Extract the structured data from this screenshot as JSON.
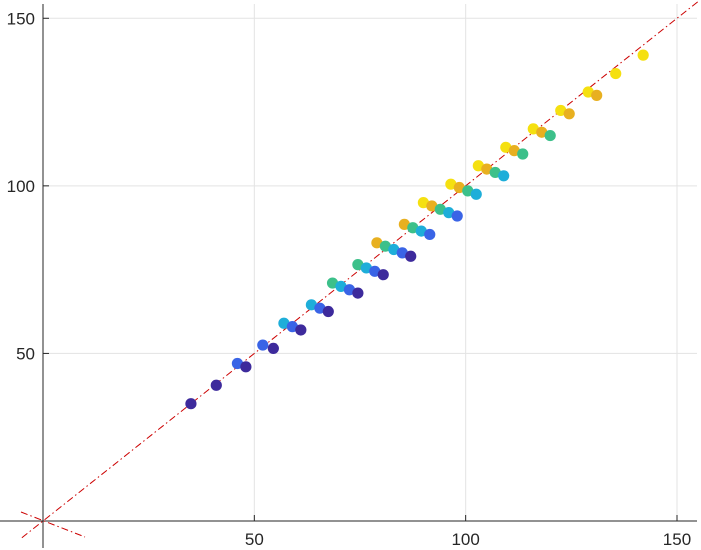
{
  "chart_data": {
    "type": "scatter",
    "title": "",
    "xlabel": "",
    "ylabel": "",
    "xlim": [
      0,
      155
    ],
    "ylim": [
      0,
      155
    ],
    "x_ticks": [
      {
        "value": 50,
        "label": "50"
      },
      {
        "value": 100,
        "label": "100"
      },
      {
        "value": 150,
        "label": "150"
      }
    ],
    "y_ticks": [
      {
        "value": 50,
        "label": "50"
      },
      {
        "value": 100,
        "label": "100"
      },
      {
        "value": 150,
        "label": "150"
      }
    ],
    "grid": true,
    "reference_line": {
      "style": "dashed",
      "color": "#cc0000",
      "slope": 1,
      "intercept": 0
    },
    "points": [
      {
        "x": 35.0,
        "y": 35.0,
        "color": "#3d2a9c"
      },
      {
        "x": 41.0,
        "y": 40.5,
        "color": "#3d2a9c"
      },
      {
        "x": 46.0,
        "y": 47.0,
        "color": "#3a64e6"
      },
      {
        "x": 48.0,
        "y": 46.0,
        "color": "#3d2a9c"
      },
      {
        "x": 52.0,
        "y": 52.5,
        "color": "#3a64e6"
      },
      {
        "x": 54.5,
        "y": 51.5,
        "color": "#3d2a9c"
      },
      {
        "x": 57.0,
        "y": 59.0,
        "color": "#1eaed9"
      },
      {
        "x": 59.0,
        "y": 58.0,
        "color": "#3a64e6"
      },
      {
        "x": 61.0,
        "y": 57.0,
        "color": "#3d2a9c"
      },
      {
        "x": 63.5,
        "y": 64.5,
        "color": "#1eaed9"
      },
      {
        "x": 65.5,
        "y": 63.5,
        "color": "#3a64e6"
      },
      {
        "x": 67.5,
        "y": 62.5,
        "color": "#3d2a9c"
      },
      {
        "x": 68.5,
        "y": 71.0,
        "color": "#3cc08a"
      },
      {
        "x": 70.5,
        "y": 70.0,
        "color": "#1eaed9"
      },
      {
        "x": 72.5,
        "y": 69.0,
        "color": "#3a64e6"
      },
      {
        "x": 74.5,
        "y": 68.0,
        "color": "#3d2a9c"
      },
      {
        "x": 74.5,
        "y": 76.5,
        "color": "#3cc08a"
      },
      {
        "x": 76.5,
        "y": 75.5,
        "color": "#1eaed9"
      },
      {
        "x": 78.5,
        "y": 74.5,
        "color": "#3a64e6"
      },
      {
        "x": 80.5,
        "y": 73.5,
        "color": "#3d2a9c"
      },
      {
        "x": 79.0,
        "y": 83.0,
        "color": "#e8b020"
      },
      {
        "x": 81.0,
        "y": 82.0,
        "color": "#3cc08a"
      },
      {
        "x": 83.0,
        "y": 81.0,
        "color": "#1eaed9"
      },
      {
        "x": 85.0,
        "y": 80.0,
        "color": "#3a64e6"
      },
      {
        "x": 87.0,
        "y": 79.0,
        "color": "#3d2a9c"
      },
      {
        "x": 85.5,
        "y": 88.5,
        "color": "#e8b020"
      },
      {
        "x": 87.5,
        "y": 87.5,
        "color": "#3cc08a"
      },
      {
        "x": 89.5,
        "y": 86.5,
        "color": "#1eaed9"
      },
      {
        "x": 91.5,
        "y": 85.5,
        "color": "#3a64e6"
      },
      {
        "x": 90.0,
        "y": 95.0,
        "color": "#f5e010"
      },
      {
        "x": 92.0,
        "y": 94.0,
        "color": "#e8b020"
      },
      {
        "x": 94.0,
        "y": 93.0,
        "color": "#3cc08a"
      },
      {
        "x": 96.0,
        "y": 92.0,
        "color": "#1eaed9"
      },
      {
        "x": 98.0,
        "y": 91.0,
        "color": "#3a64e6"
      },
      {
        "x": 96.5,
        "y": 100.5,
        "color": "#f5e010"
      },
      {
        "x": 98.5,
        "y": 99.5,
        "color": "#e8b020"
      },
      {
        "x": 100.5,
        "y": 98.5,
        "color": "#3cc08a"
      },
      {
        "x": 102.5,
        "y": 97.5,
        "color": "#1eaed9"
      },
      {
        "x": 103.0,
        "y": 106.0,
        "color": "#f5e010"
      },
      {
        "x": 105.0,
        "y": 105.0,
        "color": "#e8b020"
      },
      {
        "x": 107.0,
        "y": 104.0,
        "color": "#3cc08a"
      },
      {
        "x": 109.0,
        "y": 103.0,
        "color": "#1eaed9"
      },
      {
        "x": 109.5,
        "y": 111.5,
        "color": "#f5e010"
      },
      {
        "x": 111.5,
        "y": 110.5,
        "color": "#e8b020"
      },
      {
        "x": 113.5,
        "y": 109.5,
        "color": "#3cc08a"
      },
      {
        "x": 116.0,
        "y": 117.0,
        "color": "#f5e010"
      },
      {
        "x": 118.0,
        "y": 116.0,
        "color": "#e8b020"
      },
      {
        "x": 120.0,
        "y": 115.0,
        "color": "#3cc08a"
      },
      {
        "x": 122.5,
        "y": 122.5,
        "color": "#f5e010"
      },
      {
        "x": 124.5,
        "y": 121.5,
        "color": "#e8b020"
      },
      {
        "x": 129.0,
        "y": 128.0,
        "color": "#f5e010"
      },
      {
        "x": 131.0,
        "y": 127.0,
        "color": "#e8b020"
      },
      {
        "x": 135.5,
        "y": 133.5,
        "color": "#f5e010"
      },
      {
        "x": 142.0,
        "y": 139.0,
        "color": "#f5e010"
      }
    ]
  }
}
